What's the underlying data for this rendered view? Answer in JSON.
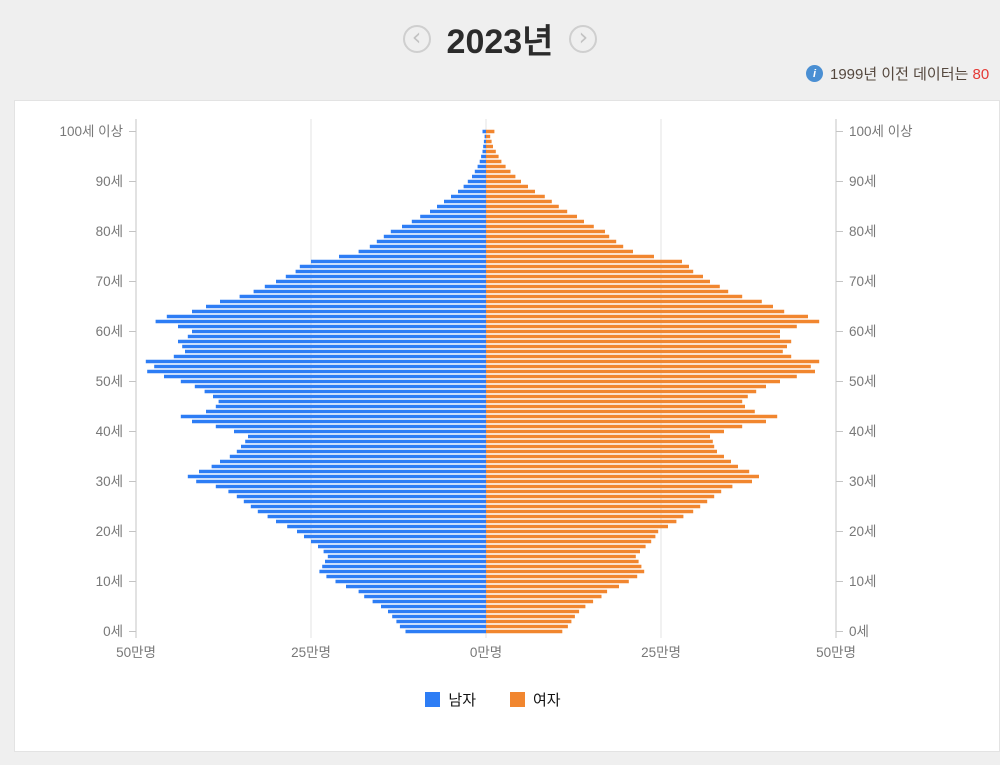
{
  "page": {
    "title": "2023년",
    "notice_prefix": "1999년 이전 데이터는 ",
    "notice_highlight": "80"
  },
  "nav": {
    "prev_icon": "‹",
    "next_icon": "›"
  },
  "chart_data": {
    "type": "bar",
    "variant": "population-pyramid",
    "title": "2023년",
    "unit": "만명",
    "xlim": [
      -50,
      50
    ],
    "x_ticks_value": [
      -50,
      -25,
      0,
      25,
      50
    ],
    "x_tick_labels": [
      "50만명",
      "25만명",
      "0만명",
      "25만명",
      "50만명"
    ],
    "age_min": 0,
    "age_max": 100,
    "age_axis_labels": [
      "0세",
      "10세",
      "20세",
      "30세",
      "40세",
      "50세",
      "60세",
      "70세",
      "80세",
      "90세",
      "100세 이상"
    ],
    "grid": true,
    "legend_position": "bottom",
    "colors": {
      "male": "#2d7df5",
      "female": "#f1862f",
      "grid": "#e3e3e3",
      "axis": "#c4c4c4",
      "label": "#787878"
    },
    "series": [
      {
        "name": "남자",
        "color": "#2d7df5",
        "values": [
          11.5,
          12.3,
          12.8,
          13.4,
          14.0,
          15.0,
          16.2,
          17.4,
          18.2,
          20.0,
          21.5,
          22.8,
          23.8,
          23.4,
          23.0,
          22.6,
          23.2,
          24.0,
          25.0,
          26.0,
          27.0,
          28.4,
          30.0,
          31.2,
          32.6,
          33.6,
          34.6,
          35.6,
          36.8,
          38.6,
          41.4,
          42.6,
          41.0,
          39.2,
          38.0,
          36.6,
          35.6,
          35.0,
          34.4,
          34.0,
          36.0,
          38.6,
          42.0,
          43.6,
          40.0,
          38.6,
          38.2,
          39.0,
          40.2,
          41.6,
          43.6,
          46.0,
          48.4,
          47.4,
          48.6,
          44.6,
          43.0,
          43.4,
          44.0,
          42.6,
          42.0,
          44.0,
          47.2,
          45.6,
          42.0,
          40.0,
          38.0,
          35.2,
          33.2,
          31.6,
          30.0,
          28.6,
          27.2,
          26.6,
          25.0,
          21.0,
          18.2,
          16.6,
          15.6,
          14.6,
          13.6,
          12.0,
          10.6,
          9.4,
          8.0,
          7.0,
          6.0,
          5.0,
          4.0,
          3.2,
          2.6,
          2.0,
          1.6,
          1.2,
          0.9,
          0.7,
          0.5,
          0.4,
          0.3,
          0.2,
          0.5
        ]
      },
      {
        "name": "여자",
        "color": "#f1862f",
        "values": [
          10.9,
          11.7,
          12.2,
          12.7,
          13.3,
          14.2,
          15.3,
          16.5,
          17.3,
          19.0,
          20.4,
          21.6,
          22.6,
          22.2,
          21.8,
          21.4,
          22.0,
          22.8,
          23.6,
          24.2,
          24.6,
          26.0,
          27.2,
          28.2,
          29.6,
          30.6,
          31.6,
          32.6,
          33.6,
          35.2,
          38.0,
          39.0,
          37.6,
          36.0,
          35.0,
          34.0,
          33.0,
          32.6,
          32.4,
          32.0,
          34.0,
          36.6,
          40.0,
          41.6,
          38.4,
          37.0,
          36.6,
          37.4,
          38.6,
          40.0,
          42.0,
          44.4,
          47.0,
          46.4,
          47.6,
          43.6,
          42.4,
          43.0,
          43.6,
          42.0,
          42.0,
          44.4,
          47.6,
          46.0,
          42.6,
          41.0,
          39.4,
          36.6,
          34.6,
          33.4,
          32.0,
          31.0,
          29.6,
          29.0,
          28.0,
          24.0,
          21.0,
          19.6,
          18.6,
          17.6,
          17.0,
          15.4,
          14.0,
          13.0,
          11.6,
          10.4,
          9.4,
          8.4,
          7.0,
          6.0,
          5.0,
          4.2,
          3.5,
          2.8,
          2.2,
          1.8,
          1.4,
          1.0,
          0.8,
          0.6,
          1.2
        ]
      }
    ]
  }
}
